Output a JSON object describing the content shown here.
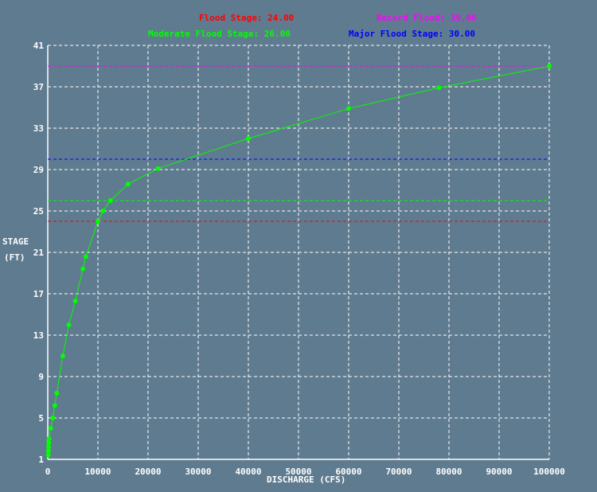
{
  "legend": [
    {
      "label": "Flood Stage: 24.00",
      "color": "#ff0000"
    },
    {
      "label": "Record Flood: 39.00",
      "color": "#ff00ff"
    },
    {
      "label": "Moderate Flood Stage: 26.00",
      "color": "#00ff00"
    },
    {
      "label": "Major Flood Stage: 30.00",
      "color": "#0000ff"
    }
  ],
  "axes": {
    "ylabel_line1": "STAGE",
    "ylabel_line2": "(FT)",
    "xlabel": "DISCHARGE (CFS)"
  },
  "chart_data": {
    "type": "line",
    "xlabel": "DISCHARGE (CFS)",
    "ylabel": "STAGE (FT)",
    "xlim": [
      0,
      100000
    ],
    "ylim": [
      1,
      41
    ],
    "xticks": [
      0,
      10000,
      20000,
      30000,
      40000,
      50000,
      60000,
      70000,
      80000,
      90000,
      100000
    ],
    "yticks": [
      1,
      5,
      9,
      13,
      17,
      21,
      25,
      29,
      33,
      37,
      41
    ],
    "grid": true,
    "series": [
      {
        "color": "#00ff00",
        "points": [
          [
            100,
            1.4
          ],
          [
            120,
            1.8
          ],
          [
            150,
            2.2
          ],
          [
            200,
            2.6
          ],
          [
            250,
            3.0
          ],
          [
            600,
            4.0
          ],
          [
            1000,
            5.0
          ],
          [
            1400,
            6.2
          ],
          [
            1800,
            7.4
          ],
          [
            3000,
            11.0
          ],
          [
            4200,
            14.0
          ],
          [
            5500,
            16.3
          ],
          [
            7000,
            19.4
          ],
          [
            7600,
            20.6
          ],
          [
            10000,
            24.0
          ],
          [
            11000,
            25.0
          ],
          [
            12500,
            26.0
          ],
          [
            16000,
            27.6
          ],
          [
            22000,
            29.1
          ],
          [
            40000,
            32.0
          ],
          [
            60000,
            34.9
          ],
          [
            78000,
            36.9
          ],
          [
            100000,
            39.0
          ]
        ]
      }
    ],
    "reference_lines": [
      {
        "name": "Flood Stage",
        "value": 24.0,
        "color": "#ff0000"
      },
      {
        "name": "Moderate Flood Stage",
        "value": 26.0,
        "color": "#00ff00"
      },
      {
        "name": "Major Flood Stage",
        "value": 30.0,
        "color": "#0000ff"
      },
      {
        "name": "Record Flood",
        "value": 39.0,
        "color": "#ff00ff"
      }
    ]
  }
}
